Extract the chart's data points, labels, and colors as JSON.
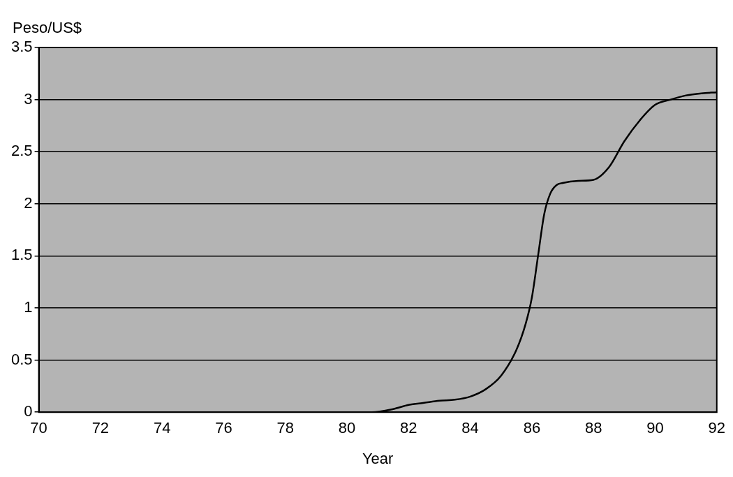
{
  "chart_data": {
    "type": "line",
    "xlabel": "Year",
    "ylabel": "Peso/US$",
    "series": [
      {
        "color": "#000000",
        "x": [
          70,
          72,
          74,
          76,
          78,
          80,
          80.8,
          81.5,
          82,
          82.5,
          83,
          83.5,
          84,
          84.5,
          85,
          85.5,
          85.8,
          86,
          86.2,
          86.4,
          86.6,
          86.8,
          87,
          87.5,
          88,
          88.5,
          89,
          89.5,
          90,
          90.5,
          91,
          91.5,
          92
        ],
        "values": [
          0,
          0,
          0,
          0,
          0,
          0,
          0,
          0.03,
          0.07,
          0.09,
          0.11,
          0.12,
          0.15,
          0.22,
          0.35,
          0.6,
          0.85,
          1.1,
          1.5,
          1.9,
          2.1,
          2.18,
          2.2,
          2.22,
          2.23,
          2.35,
          2.6,
          2.8,
          2.95,
          3.0,
          3.04,
          3.06,
          3.07
        ]
      }
    ],
    "xlim": [
      70,
      92
    ],
    "xticks": [
      70,
      72,
      74,
      76,
      78,
      80,
      82,
      84,
      86,
      88,
      90,
      92
    ],
    "ylim": [
      0,
      3.5
    ],
    "yticks": [
      0,
      0.5,
      1,
      1.5,
      2,
      2.5,
      3,
      3.5
    ],
    "grid": "y",
    "legend": false,
    "marker": "none",
    "line_style": "solid"
  }
}
